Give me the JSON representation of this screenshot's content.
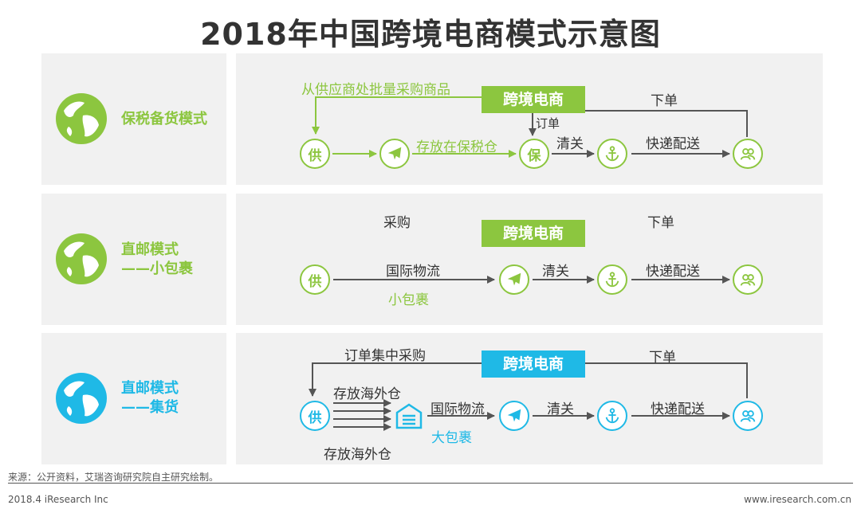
{
  "title": "2018年中国跨境电商模式示意图",
  "colors": {
    "green": "#8cc63f",
    "blue": "#1fb9e6",
    "arrow": "#555555",
    "panel": "#f1f1f1"
  },
  "modes": [
    {
      "label_lines": [
        "保税备货模式"
      ],
      "color": "#8cc63f",
      "banner": "跨境电商",
      "texts": {
        "sourcing": "从供应商处批量采购商品",
        "place_order": "下单",
        "order": "订单",
        "storage": "存放在保税仓",
        "clearance": "清关",
        "delivery": "快递配送"
      },
      "nodes": {
        "supplier": "供",
        "bonded": "保"
      }
    },
    {
      "label_lines": [
        "直邮模式",
        "——小包裹"
      ],
      "color": "#8cc63f",
      "banner": "跨境电商",
      "texts": {
        "purchase": "采购",
        "place_order": "下单",
        "logistics": "国际物流",
        "parcel": "小包裹",
        "clearance": "清关",
        "delivery": "快递配送"
      },
      "nodes": {
        "supplier": "供"
      }
    },
    {
      "label_lines": [
        "直邮模式",
        "——集货"
      ],
      "color": "#1fb9e6",
      "banner": "跨境电商",
      "texts": {
        "collective_purchase": "订单集中采购",
        "place_order": "下单",
        "storage_top": "存放海外仓",
        "storage_bottom": "存放海外仓",
        "logistics": "国际物流",
        "parcel": "大包裹",
        "clearance": "清关",
        "delivery": "快递配送"
      },
      "nodes": {
        "supplier": "供"
      }
    }
  ],
  "footer": {
    "source": "来源：公开资料，艾瑞咨询研究院自主研究绘制。",
    "copyright": "2018.4 iResearch Inc",
    "website": "www.iresearch.com.cn"
  }
}
